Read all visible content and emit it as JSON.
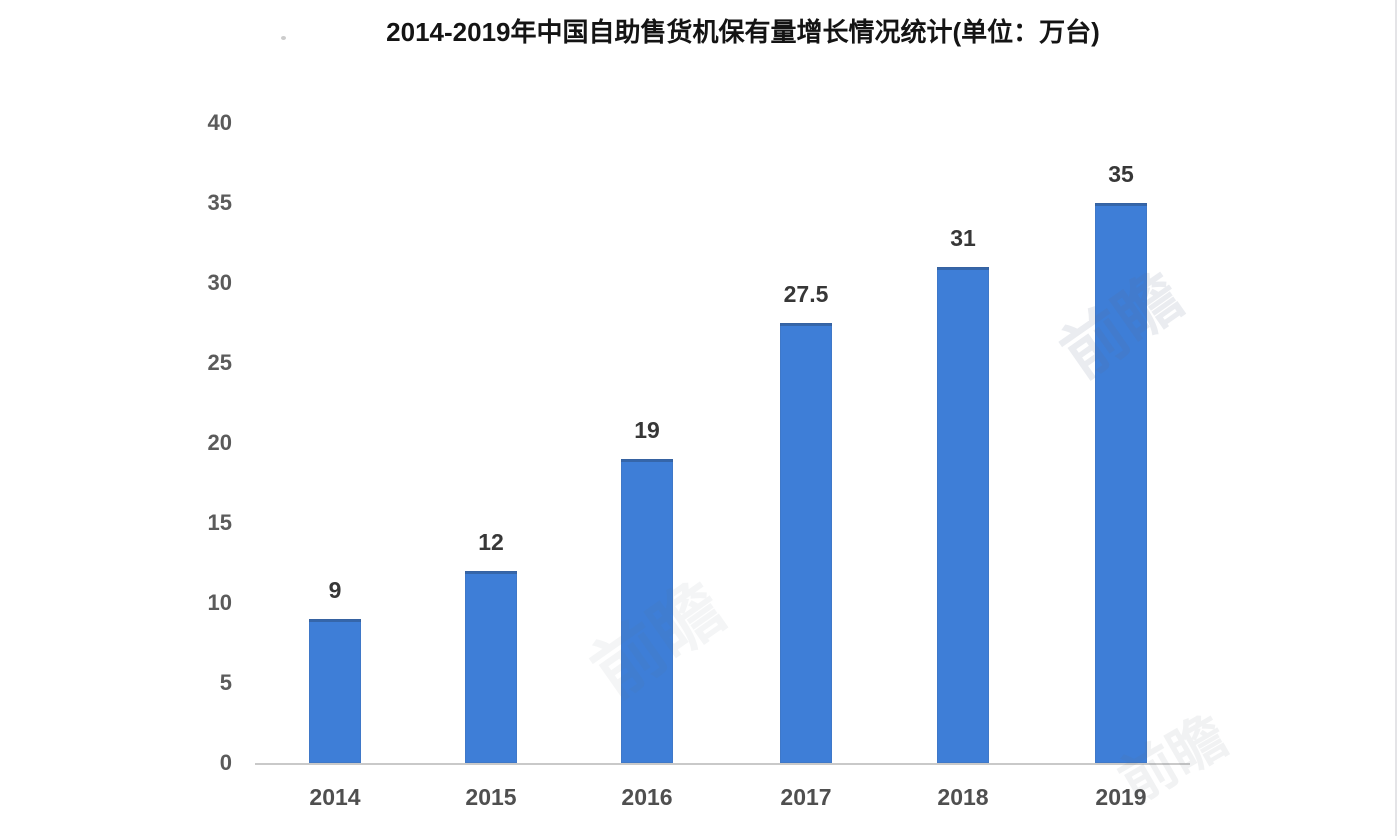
{
  "chart_data": {
    "type": "bar",
    "title": "2014-2019年中国自助售货机保有量增长情况统计(单位：万台)",
    "categories": [
      "2014",
      "2015",
      "2016",
      "2017",
      "2018",
      "2019"
    ],
    "values": [
      9,
      12,
      19,
      27.5,
      31,
      35
    ],
    "value_labels": [
      "9",
      "12",
      "19",
      "27.5",
      "31",
      "35"
    ],
    "unit": "万台",
    "xlabel": "",
    "ylabel": "",
    "ylim": [
      0,
      40
    ],
    "yticks": [
      0,
      5,
      10,
      15,
      20,
      25,
      30,
      35,
      40
    ],
    "grid": false,
    "legend_position": "none",
    "bar_color": "#3e7ed7",
    "axis_line_color": "#c9c9c9",
    "watermark_text": "前瞻"
  }
}
